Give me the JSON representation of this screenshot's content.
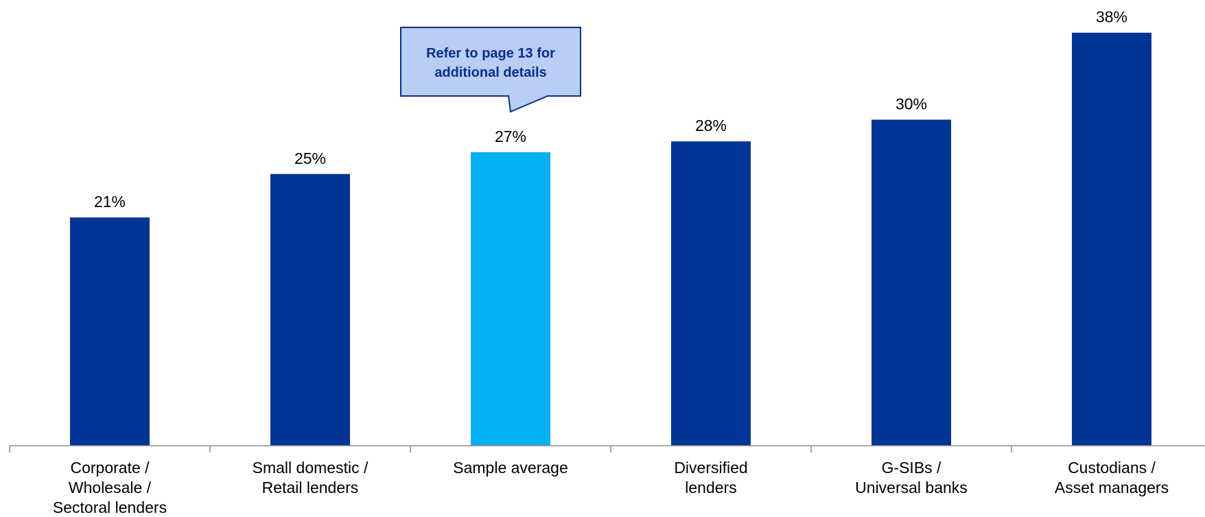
{
  "chart_data": {
    "type": "bar",
    "categories": [
      [
        "Corporate /",
        "Wholesale /",
        "Sectoral lenders"
      ],
      [
        "Small domestic /",
        "Retail lenders"
      ],
      [
        "Sample average"
      ],
      [
        "Diversified",
        "lenders"
      ],
      [
        "G-SIBs /",
        "Universal banks"
      ],
      [
        "Custodians /",
        "Asset managers"
      ]
    ],
    "values": [
      21,
      25,
      27,
      28,
      30,
      38
    ],
    "value_labels": [
      "21%",
      "25%",
      "27%",
      "28%",
      "30%",
      "38%"
    ],
    "highlight_index": 2,
    "ylim": [
      0,
      40
    ],
    "grid": false,
    "annotation": {
      "lines": [
        "Refer to page 13 for",
        "additional details"
      ],
      "points_to_index": 2
    }
  },
  "colors": {
    "bar": "#003595",
    "highlight_bar": "#00b0f0",
    "callout_fill": "#b9cdf5",
    "callout_border": "#0a2d8f",
    "axis": "#8c8c8c"
  }
}
